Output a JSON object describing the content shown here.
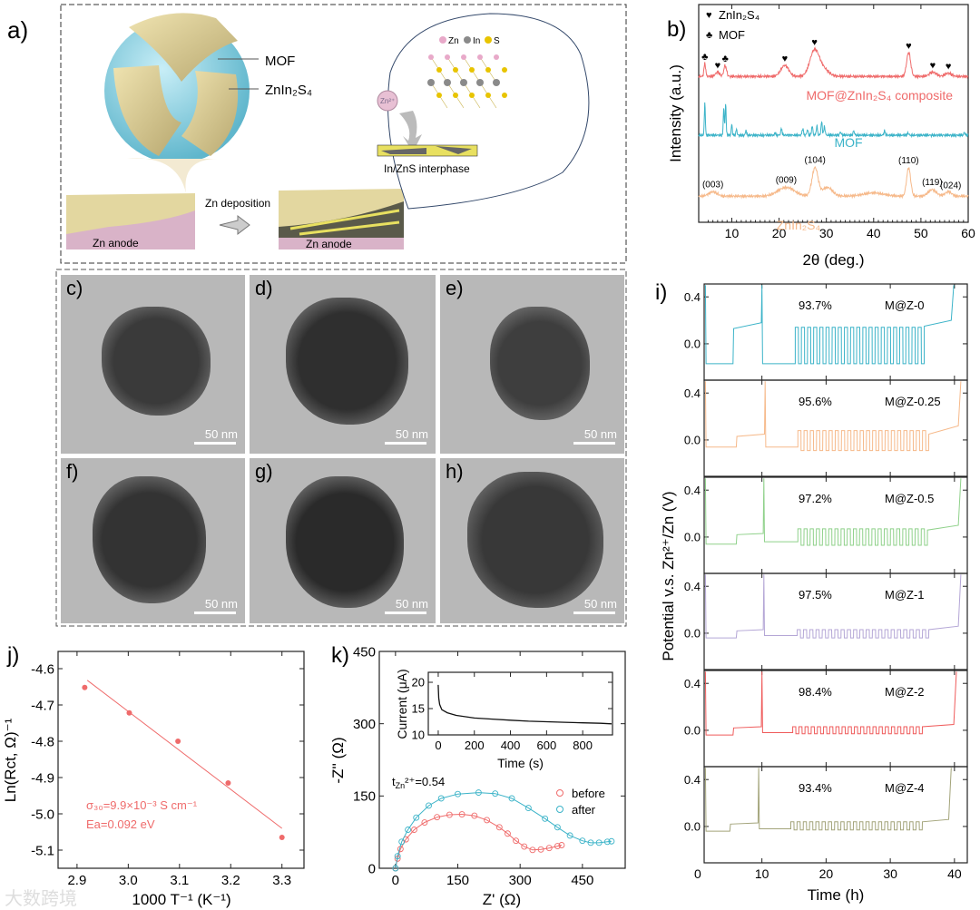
{
  "panel_a": {
    "label": "a)",
    "mof_label": "MOF",
    "znins_label": "ZnIn₂S₄",
    "deposition_label": "Zn deposition",
    "anode_label_left": "Zn anode",
    "anode_label_right": "Zn anode",
    "interphase_label": "In/ZnS interphase",
    "legend_zn": "Zn",
    "legend_in": "In",
    "legend_s": "S",
    "ion_label": "Zn²⁺",
    "colors": {
      "mof": "#8fd3e3",
      "znins": "#e6d9a0",
      "anode": "#d9b3c8",
      "zn": "#e8a9c9",
      "in": "#8a8a8a",
      "s": "#e8c400"
    }
  },
  "tem": {
    "scale_text": "50 nm",
    "panels": [
      {
        "label": "c)",
        "scale": "50 nm"
      },
      {
        "label": "d)",
        "scale": "50 nm"
      },
      {
        "label": "e)",
        "scale": "50 nm"
      },
      {
        "label": "f)",
        "scale": "50 nm"
      },
      {
        "label": "g)",
        "scale": "50 nm"
      },
      {
        "label": "h)",
        "scale": "50 nm"
      }
    ]
  },
  "chart_data": [
    {
      "id": "b",
      "panel_label": "b)",
      "type": "line",
      "xlabel": "2θ (deg.)",
      "ylabel": "Intensity (a.u.)",
      "xlim": [
        3,
        60
      ],
      "ylim": [
        0,
        100
      ],
      "xticks": [
        10,
        20,
        30,
        40,
        50,
        60
      ],
      "legend": [
        {
          "symbol": "♥",
          "text": "ZnIn₂S₄"
        },
        {
          "symbol": "♣",
          "text": "MOF"
        }
      ],
      "series": [
        {
          "name": "MOF@ZnIn₂S₄ composite",
          "color": "#ef6b6b",
          "baseline": 67,
          "peaks": [
            [
              4.3,
              6,
              0.25
            ],
            [
              7.0,
              2,
              0.6
            ],
            [
              8.6,
              5,
              0.4
            ],
            [
              21.2,
              5,
              1.2
            ],
            [
              27.5,
              12,
              1.4
            ],
            [
              29.5,
              3,
              1.5
            ],
            [
              47.4,
              11,
              0.6
            ],
            [
              52.5,
              2,
              1.0
            ],
            [
              55.8,
              1.5,
              1.0
            ]
          ],
          "markers": [
            [
              4.3,
              "♣"
            ],
            [
              7.0,
              "♥"
            ],
            [
              8.6,
              "♣"
            ],
            [
              21.2,
              "♥"
            ],
            [
              27.5,
              "♥"
            ],
            [
              47.4,
              "♥"
            ],
            [
              52.5,
              "♥"
            ],
            [
              55.8,
              "♥"
            ]
          ]
        },
        {
          "name": "MOF",
          "color": "#3bb3c8",
          "baseline": 40,
          "peaks": [
            [
              4.3,
              15,
              0.15
            ],
            [
              8.3,
              13,
              0.15
            ],
            [
              8.7,
              15,
              0.15
            ],
            [
              10.0,
              5,
              0.15
            ],
            [
              11.0,
              3,
              0.15
            ],
            [
              13.0,
              2.5,
              0.15
            ],
            [
              19.2,
              1.5,
              0.15
            ],
            [
              20.5,
              3,
              0.2
            ],
            [
              25.0,
              3,
              0.2
            ],
            [
              26.0,
              2.5,
              0.2
            ],
            [
              27.0,
              4,
              0.2
            ],
            [
              28.0,
              4,
              0.2
            ],
            [
              29.0,
              6,
              0.2
            ],
            [
              29.6,
              4,
              0.2
            ],
            [
              33.0,
              1.5,
              0.2
            ],
            [
              35.8,
              2,
              0.2
            ],
            [
              42.3,
              2,
              0.2
            ],
            [
              47.3,
              1,
              0.2
            ],
            [
              59.2,
              1.2,
              0.2
            ]
          ]
        },
        {
          "name": "ZnIn₂S₄",
          "color": "#f6b98a",
          "baseline": 12,
          "peaks": [
            [
              6.0,
              2,
              1.2
            ],
            [
              21.5,
              4,
              2.5
            ],
            [
              27.6,
              13,
              0.9
            ],
            [
              30.2,
              4,
              1.5
            ],
            [
              40.0,
              1.5,
              3
            ],
            [
              47.4,
              13,
              0.6
            ],
            [
              52.4,
              3,
              1.2
            ],
            [
              55.8,
              2,
              1.0
            ]
          ],
          "annotations": [
            [
              6.0,
              "(003)"
            ],
            [
              21.5,
              "(009)"
            ],
            [
              27.6,
              "(104)"
            ],
            [
              47.4,
              "(110)"
            ],
            [
              52.4,
              "(119)"
            ],
            [
              56.3,
              "(024)"
            ]
          ]
        }
      ]
    },
    {
      "id": "i",
      "panel_label": "i)",
      "type": "line",
      "xlabel": "Time (h)",
      "ylabel": "Potential v.s. Zn²⁺/Zn (V)",
      "xlim": [
        1,
        42
      ],
      "ylim": [
        -0.31,
        0.51
      ],
      "xticks": [
        0,
        10,
        20,
        30,
        40
      ],
      "yticks": [
        0.0,
        0.4
      ],
      "series": [
        {
          "name": "M@Z-0",
          "efficiency": "93.7%",
          "color": "#3bb3c8",
          "t_start": 1.2,
          "plate_v": -0.17,
          "strip_start": 5.5,
          "strip_v": [
            0.13,
            0.18
          ],
          "spike1_t": 10.0,
          "rest_v": -0.17,
          "cycle_start": 15.2,
          "cycle_end": 35.3,
          "cycle_low": -0.17,
          "cycle_high": 0.14,
          "n_cycles": 21,
          "tail_v": [
            0.15,
            0.2
          ],
          "spike2_t": 39.9
        },
        {
          "name": "M@Z-0.25",
          "efficiency": "95.6%",
          "color": "#f6b98a",
          "t_start": 1.2,
          "plate_v": -0.06,
          "strip_start": 6.0,
          "strip_v": [
            0.03,
            0.05
          ],
          "spike1_t": 10.5,
          "rest_v": -0.06,
          "cycle_start": 15.6,
          "cycle_end": 36.0,
          "cycle_low": -0.09,
          "cycle_high": 0.08,
          "n_cycles": 21,
          "tail_v": [
            0.05,
            0.12
          ],
          "spike2_t": 41.0
        },
        {
          "name": "M@Z-0.5",
          "efficiency": "97.2%",
          "color": "#8fd18a",
          "t_start": 1.2,
          "plate_v": -0.06,
          "strip_start": 6.0,
          "strip_v": [
            0.02,
            0.03
          ],
          "spike1_t": 10.3,
          "rest_v": -0.04,
          "cycle_start": 15.6,
          "cycle_end": 35.8,
          "cycle_low": -0.07,
          "cycle_high": 0.07,
          "n_cycles": 21,
          "tail_v": [
            0.06,
            0.1
          ],
          "spike2_t": 41.0
        },
        {
          "name": "M@Z-1",
          "efficiency": "97.5%",
          "color": "#b4a6d6",
          "t_start": 1.2,
          "plate_v": -0.04,
          "strip_start": 6.0,
          "strip_v": [
            0.02,
            0.03
          ],
          "spike1_t": 10.3,
          "rest_v": -0.02,
          "cycle_start": 15.5,
          "cycle_end": 36.0,
          "cycle_low": -0.04,
          "cycle_high": 0.03,
          "n_cycles": 21,
          "tail_v": [
            0.03,
            0.06
          ],
          "spike2_t": 41.0
        },
        {
          "name": "M@Z-2",
          "efficiency": "98.4%",
          "color": "#ef5b5b",
          "t_start": 1.2,
          "plate_v": -0.04,
          "strip_start": 5.5,
          "strip_v": [
            0.02,
            0.03
          ],
          "spike1_t": 10.0,
          "rest_v": -0.02,
          "cycle_start": 14.8,
          "cycle_end": 35.0,
          "cycle_low": -0.03,
          "cycle_high": 0.03,
          "n_cycles": 21,
          "tail_v": [
            0.03,
            0.05
          ],
          "spike2_t": 40.3
        },
        {
          "name": "M@Z-4",
          "efficiency": "93.4%",
          "color": "#a3a47a",
          "t_start": 1.2,
          "plate_v": -0.04,
          "strip_start": 5.0,
          "strip_v": [
            0.02,
            0.03
          ],
          "spike1_t": 9.5,
          "rest_v": -0.02,
          "cycle_start": 14.5,
          "cycle_end": 35.0,
          "cycle_low": -0.03,
          "cycle_high": 0.04,
          "n_cycles": 21,
          "tail_v": [
            0.04,
            0.06
          ],
          "spike2_t": 39.5
        }
      ]
    },
    {
      "id": "j",
      "panel_label": "j)",
      "type": "scatter",
      "xlabel": "1000 T⁻¹ (K⁻¹)",
      "ylabel": "Ln(Rct, Ω)⁻¹",
      "xlim": [
        2.863,
        3.343
      ],
      "ylim": [
        -5.15,
        -4.5525
      ],
      "xticks": [
        2.9,
        3.0,
        3.1,
        3.2,
        3.3
      ],
      "yticks": [
        -4.6,
        -4.7,
        -4.8,
        -4.9,
        -5.0,
        -5.1
      ],
      "color": "#ef6b6b",
      "points": [
        [
          2.915,
          -4.652
        ],
        [
          3.002,
          -4.722
        ],
        [
          3.097,
          -4.8
        ],
        [
          3.195,
          -4.915
        ],
        [
          3.3,
          -5.065
        ]
      ],
      "fit": [
        [
          2.92,
          -4.632
        ],
        [
          3.3,
          -5.04
        ]
      ],
      "annotation_sigma": "σ₃₀=9.9×10⁻³ S cm⁻¹",
      "annotation_ea": "Ea=0.092 eV"
    },
    {
      "id": "k",
      "panel_label": "k)",
      "type": "scatter",
      "xlabel": "Z' (Ω)",
      "ylabel": "-Z'' (Ω)",
      "xlim": [
        -39,
        553
      ],
      "ylim": [
        0,
        450
      ],
      "xticks": [
        0,
        150,
        300,
        450
      ],
      "yticks": [
        0,
        150,
        300,
        450
      ],
      "t_label_prefix": "t",
      "t_label_sub": "Zn",
      "t_label_suffix": "²⁺=0.54",
      "series": [
        {
          "name": "before",
          "color": "#ef6b6b",
          "points": [
            [
              0,
              0
            ],
            [
              5,
              20
            ],
            [
              12,
              40
            ],
            [
              25,
              60
            ],
            [
              45,
              80
            ],
            [
              70,
              95
            ],
            [
              100,
              106
            ],
            [
              130,
              111
            ],
            [
              160,
              112
            ],
            [
              190,
              109
            ],
            [
              220,
              100
            ],
            [
              250,
              85
            ],
            [
              270,
              72
            ],
            [
              290,
              57
            ],
            [
              310,
              45
            ],
            [
              330,
              38
            ],
            [
              350,
              39
            ],
            [
              370,
              42
            ],
            [
              390,
              46
            ],
            [
              400,
              48
            ]
          ]
        },
        {
          "name": "after",
          "color": "#3bb3c8",
          "points": [
            [
              0,
              0
            ],
            [
              5,
              25
            ],
            [
              15,
              55
            ],
            [
              30,
              80
            ],
            [
              50,
              105
            ],
            [
              80,
              130
            ],
            [
              110,
              145
            ],
            [
              150,
              154
            ],
            [
              200,
              157
            ],
            [
              240,
              155
            ],
            [
              280,
              145
            ],
            [
              320,
              125
            ],
            [
              360,
              103
            ],
            [
              390,
              85
            ],
            [
              420,
              68
            ],
            [
              450,
              57
            ],
            [
              470,
              53
            ],
            [
              490,
              53
            ],
            [
              510,
              55
            ],
            [
              520,
              56
            ]
          ]
        }
      ],
      "inset": {
        "type": "line",
        "xlabel": "Time (s)",
        "ylabel": "Current (μA)",
        "xlim": [
          -55,
          965
        ],
        "ylim": [
          10,
          21.9
        ],
        "xticks": [
          0,
          200,
          400,
          600,
          800
        ],
        "yticks": [
          10,
          15,
          20
        ],
        "points": [
          [
            0,
            19.5
          ],
          [
            3,
            17
          ],
          [
            8,
            15.8
          ],
          [
            20,
            14.8
          ],
          [
            50,
            14.2
          ],
          [
            100,
            13.7
          ],
          [
            200,
            13.2
          ],
          [
            300,
            13.0
          ],
          [
            400,
            12.8
          ],
          [
            500,
            12.6
          ],
          [
            600,
            12.5
          ],
          [
            700,
            12.4
          ],
          [
            800,
            12.3
          ],
          [
            900,
            12.2
          ],
          [
            960,
            12.1
          ]
        ]
      }
    }
  ],
  "watermark": "大数跨境"
}
